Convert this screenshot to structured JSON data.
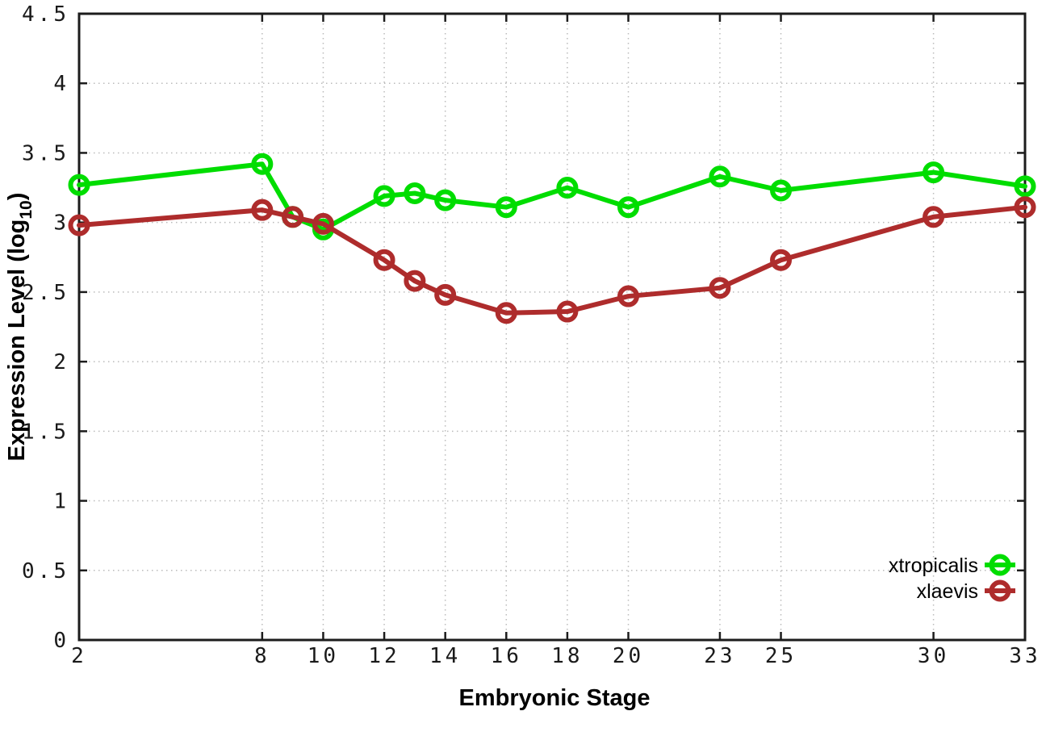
{
  "chart_data": {
    "type": "line",
    "title": "",
    "xlabel": "Embryonic Stage",
    "ylabel": {
      "prefix": "Expression Level (log",
      "sub": "10",
      "suffix": ")"
    },
    "xlim": [
      2,
      33
    ],
    "ylim": [
      0,
      4.5
    ],
    "xticks": [
      2,
      8,
      10,
      12,
      14,
      16,
      18,
      20,
      23,
      25,
      30,
      33
    ],
    "xtick_labels": [
      "2",
      "8",
      "10",
      "12",
      "14",
      "16",
      "18",
      "20",
      "23",
      "25",
      "30",
      "33"
    ],
    "yticks": [
      0,
      0.5,
      1,
      1.5,
      2,
      2.5,
      3,
      3.5,
      4,
      4.5
    ],
    "ytick_labels": [
      "0",
      "0.5",
      "1",
      "1.5",
      "2",
      "2.5",
      "3",
      "3.5",
      "4",
      "4.5"
    ],
    "grid": true,
    "legend_position": "inside-bottom-right",
    "x": [
      2,
      8,
      9,
      10,
      12,
      13,
      14,
      16,
      18,
      20,
      23,
      25,
      30,
      33
    ],
    "series": [
      {
        "name": "xtropicalis",
        "color": "#00dd00",
        "marker": "open-circle",
        "values": [
          3.27,
          3.42,
          3.04,
          2.95,
          3.19,
          3.21,
          3.16,
          3.11,
          3.25,
          3.11,
          3.33,
          3.23,
          3.36,
          3.26
        ]
      },
      {
        "name": "xlaevis",
        "color": "#ae2c2c",
        "marker": "open-circle",
        "values": [
          2.98,
          3.09,
          3.04,
          2.99,
          2.73,
          2.58,
          2.48,
          2.35,
          2.36,
          2.47,
          2.53,
          2.73,
          3.04,
          3.11
        ]
      }
    ],
    "colors": {
      "background": "#ffffff",
      "border": "#1c1c1c",
      "grid": "#bbbbbb",
      "tick_text": "#1a1a1a"
    }
  }
}
